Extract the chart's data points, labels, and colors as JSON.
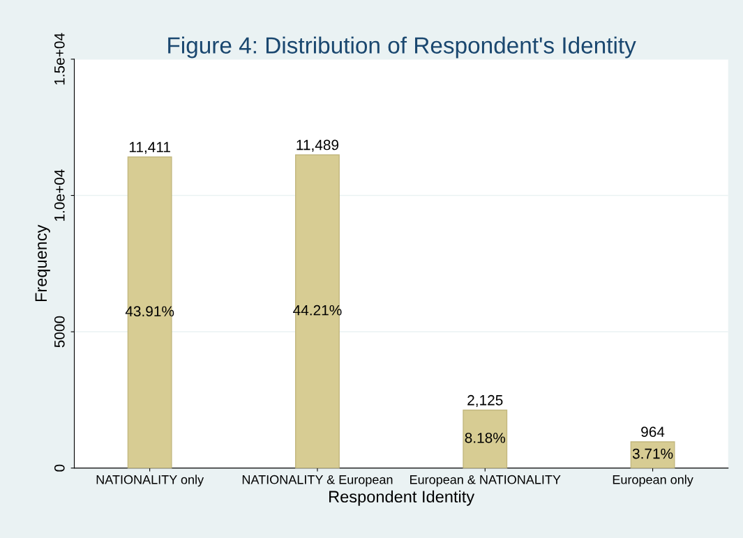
{
  "chart_data": {
    "type": "bar",
    "title": "Figure 4: Distribution of Respondent's Identity",
    "xlabel": "Respondent Identity",
    "ylabel": "Frequency",
    "categories": [
      "NATIONALITY only",
      "NATIONALITY & European",
      "European & NATIONALITY",
      "European only"
    ],
    "values": [
      11411,
      11489,
      2125,
      964
    ],
    "value_labels": [
      "11,411",
      "11,489",
      "2,125",
      "964"
    ],
    "color": "#d7cc93",
    "annotations": [
      "43.91%",
      "44.21%",
      "8.18%",
      "3.71%"
    ],
    "ylim": [
      0,
      15000
    ],
    "yticks": [
      0,
      5000,
      {
        "value": 10000,
        "label": "1.0e+04"
      },
      {
        "value": 15000,
        "label": "1.5e+04"
      }
    ],
    "grid": "y",
    "legend": false
  }
}
